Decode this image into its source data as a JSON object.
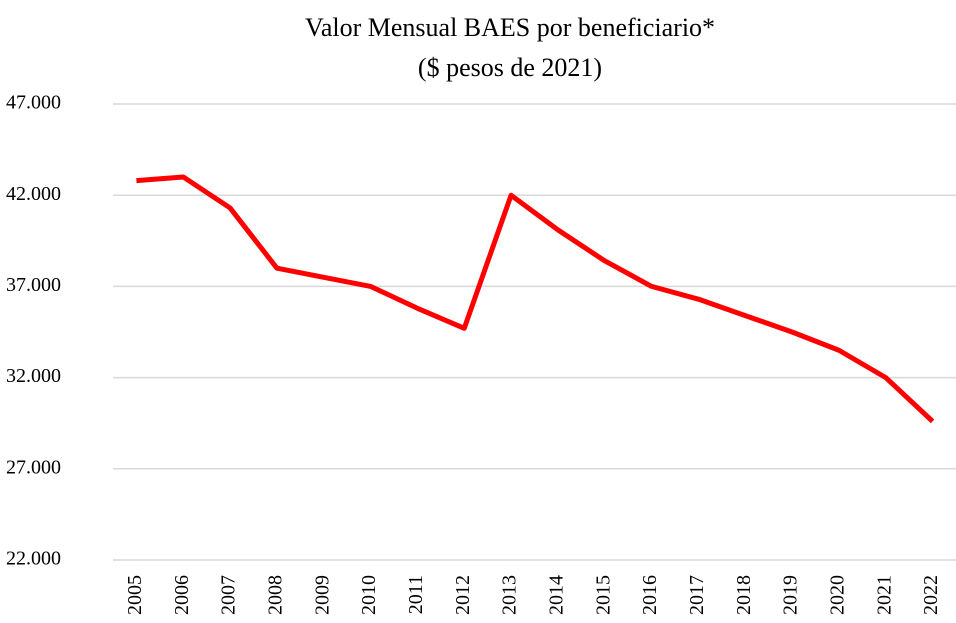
{
  "chart_data": {
    "type": "line",
    "title": "Valor Mensual BAES por beneficiario*",
    "subtitle": "($ pesos de 2021)",
    "categories": [
      "2005",
      "2006",
      "2007",
      "2008",
      "2009",
      "2010",
      "2011",
      "2012",
      "2013",
      "2014",
      "2015",
      "2016",
      "2017",
      "2018",
      "2019",
      "2020",
      "2021",
      "2022"
    ],
    "series": [
      {
        "name": "Valor Mensual BAES",
        "color": "#ff0000",
        "values": [
          42800,
          43000,
          41300,
          38000,
          37500,
          37000,
          35800,
          34700,
          42000,
          40100,
          38400,
          37000,
          36300,
          35400,
          34500,
          33500,
          32000,
          29600
        ]
      }
    ],
    "ylim": [
      22000,
      47000
    ],
    "yticks": [
      {
        "value": 22000,
        "label": "22.000"
      },
      {
        "value": 27000,
        "label": "27.000"
      },
      {
        "value": 32000,
        "label": "32.000"
      },
      {
        "value": 37000,
        "label": "37.000"
      },
      {
        "value": 42000,
        "label": "42.000"
      },
      {
        "value": 47000,
        "label": "47.000"
      }
    ],
    "grid": true
  }
}
